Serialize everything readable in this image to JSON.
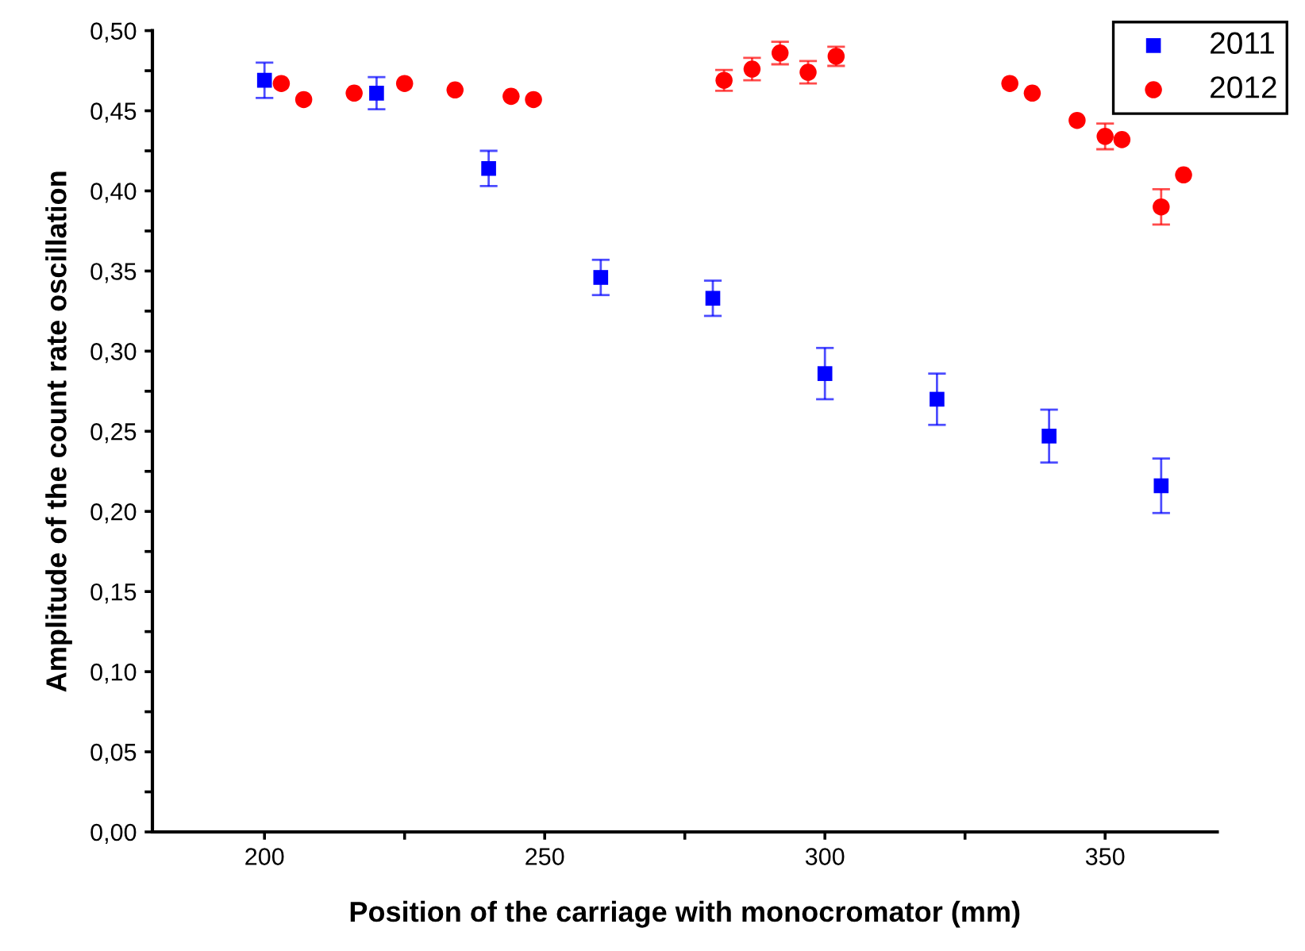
{
  "chart_data": {
    "type": "scatter",
    "xlabel": "Position of the carriage with monocromator (mm)",
    "ylabel": "Amplitude of the count rate oscillation",
    "xlim": [
      180,
      370
    ],
    "ylim": [
      0,
      0.5
    ],
    "xticks": [
      200,
      {
        "value": 225,
        "label": null
      },
      250,
      {
        "value": 275,
        "label": null
      },
      300,
      {
        "value": 325,
        "label": null
      },
      350
    ],
    "yticks": [
      {
        "value": 0,
        "label": "0,00"
      },
      {
        "value": 0.025,
        "label": null
      },
      {
        "value": 0.05,
        "label": "0,05"
      },
      {
        "value": 0.075,
        "label": null
      },
      {
        "value": 0.1,
        "label": "0,10"
      },
      {
        "value": 0.125,
        "label": null
      },
      {
        "value": 0.15,
        "label": "0,15"
      },
      {
        "value": 0.175,
        "label": null
      },
      {
        "value": 0.2,
        "label": "0,20"
      },
      {
        "value": 0.225,
        "label": null
      },
      {
        "value": 0.25,
        "label": "0,25"
      },
      {
        "value": 0.275,
        "label": null
      },
      {
        "value": 0.3,
        "label": "0,30"
      },
      {
        "value": 0.325,
        "label": null
      },
      {
        "value": 0.35,
        "label": "0,35"
      },
      {
        "value": 0.375,
        "label": null
      },
      {
        "value": 0.4,
        "label": "0,40"
      },
      {
        "value": 0.425,
        "label": null
      },
      {
        "value": 0.45,
        "label": "0,45"
      },
      {
        "value": 0.475,
        "label": null
      },
      {
        "value": 0.5,
        "label": "0,50"
      }
    ],
    "grid": false,
    "legend": "top right",
    "series": [
      {
        "name": "2011",
        "color": "#0000ff",
        "marker": "square",
        "x": [
          200,
          220,
          240,
          260,
          280,
          300,
          320,
          340,
          360
        ],
        "values": [
          0.469,
          0.461,
          0.414,
          0.346,
          0.333,
          0.286,
          0.27,
          0.247,
          0.216
        ],
        "errors": [
          0.011,
          0.01,
          0.011,
          0.011,
          0.011,
          0.016,
          0.016,
          0.0165,
          0.017
        ]
      },
      {
        "name": "2012",
        "color": "#ff0000",
        "marker": "circle",
        "x": [
          203,
          207,
          216,
          225,
          234,
          244,
          248,
          282,
          287,
          292,
          297,
          302,
          333,
          337,
          345,
          350,
          353,
          360,
          364
        ],
        "values": [
          0.467,
          0.457,
          0.461,
          0.467,
          0.463,
          0.459,
          0.457,
          0.469,
          0.476,
          0.486,
          0.474,
          0.484,
          0.467,
          0.461,
          0.444,
          0.434,
          0.432,
          0.39,
          0.41
        ],
        "errors": [
          null,
          null,
          null,
          null,
          null,
          null,
          null,
          0.0065,
          0.007,
          0.007,
          0.007,
          0.006,
          null,
          null,
          null,
          0.008,
          null,
          0.011,
          null
        ]
      }
    ]
  }
}
